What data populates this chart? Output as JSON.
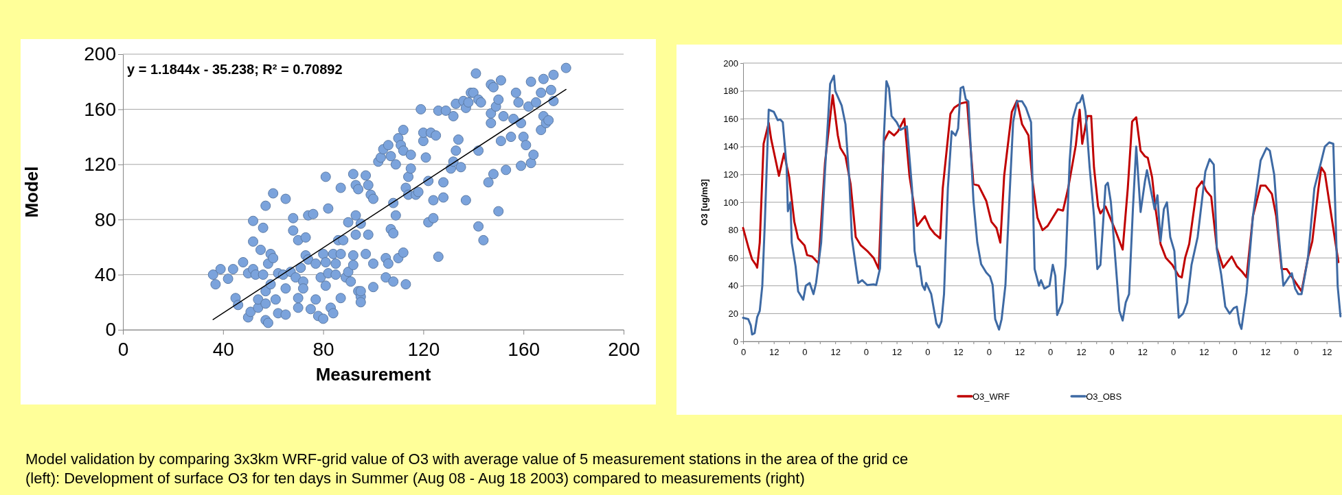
{
  "chart_data": [
    {
      "type": "scatter",
      "xlabel": "Measurement",
      "ylabel": "Model",
      "xlim": [
        0,
        200
      ],
      "xticks": [
        0,
        40,
        80,
        120,
        160,
        200
      ],
      "ylim": [
        0,
        200
      ],
      "yticks": [
        0,
        40,
        80,
        120,
        160,
        200
      ],
      "grid": "y",
      "annotations": [
        "y = 1.1844x - 35.238; R² = 0.70892"
      ],
      "series": [
        {
          "type": "scatter",
          "marker": "circle",
          "color": "#7ba3dc",
          "x": [
            36,
            37,
            39,
            42,
            44,
            45,
            46,
            48,
            50,
            50,
            51,
            52,
            52,
            52,
            53,
            54,
            54,
            55,
            56,
            56,
            57,
            57,
            57,
            57,
            58,
            58,
            59,
            59,
            60,
            60,
            61,
            62,
            62,
            64,
            65,
            65,
            65,
            67,
            68,
            68,
            69,
            70,
            70,
            70,
            71,
            72,
            72,
            73,
            73,
            74,
            74,
            75,
            76,
            77,
            77,
            78,
            79,
            80,
            80,
            81,
            81,
            81,
            82,
            82,
            83,
            84,
            84,
            85,
            85,
            86,
            87,
            87,
            87,
            88,
            89,
            90,
            90,
            91,
            92,
            92,
            92,
            93,
            93,
            93,
            94,
            94,
            95,
            95,
            95,
            95,
            97,
            97,
            98,
            98,
            99,
            100,
            100,
            100,
            102,
            103,
            104,
            105,
            105,
            106,
            106,
            107,
            107,
            108,
            108,
            108,
            109,
            109,
            110,
            110,
            111,
            112,
            112,
            112,
            113,
            113,
            114,
            114,
            115,
            115,
            117,
            118,
            119,
            120,
            120,
            121,
            122,
            122,
            123,
            124,
            124,
            125,
            126,
            126,
            128,
            128,
            129,
            131,
            132,
            132,
            133,
            133,
            134,
            135,
            136,
            137,
            137,
            138,
            139,
            140,
            141,
            142,
            142,
            142,
            143,
            144,
            146,
            147,
            147,
            147,
            148,
            148,
            149,
            150,
            150,
            151,
            151,
            152,
            153,
            155,
            156,
            157,
            158,
            159,
            159,
            160,
            161,
            162,
            163,
            163,
            164,
            165,
            167,
            167,
            168,
            168,
            169,
            170,
            171,
            172,
            172,
            177
          ],
          "values": [
            40,
            33,
            44,
            37,
            44,
            23,
            18,
            49,
            41,
            9,
            13,
            44,
            64,
            79,
            40,
            16,
            22,
            58,
            74,
            40,
            7,
            19,
            28,
            90,
            48,
            5,
            55,
            33,
            52,
            99,
            22,
            41,
            12,
            40,
            95,
            30,
            11,
            42,
            72,
            81,
            38,
            65,
            23,
            16,
            45,
            35,
            30,
            54,
            67,
            83,
            51,
            15,
            84,
            22,
            48,
            10,
            38,
            8,
            55,
            49,
            32,
            111,
            88,
            41,
            16,
            12,
            55,
            40,
            48,
            65,
            103,
            23,
            55,
            65,
            38,
            78,
            42,
            35,
            113,
            54,
            47,
            83,
            105,
            69,
            102,
            28,
            24,
            20,
            77,
            28,
            112,
            55,
            69,
            105,
            98,
            95,
            48,
            31,
            122,
            125,
            131,
            52,
            38,
            134,
            48,
            73,
            126,
            92,
            70,
            35,
            120,
            83,
            52,
            139,
            134,
            145,
            130,
            56,
            33,
            103,
            98,
            111,
            117,
            127,
            98,
            100,
            160,
            137,
            143,
            125,
            78,
            108,
            143,
            94,
            81,
            141,
            159,
            53,
            107,
            96,
            159,
            117,
            155,
            122,
            130,
            164,
            138,
            118,
            166,
            94,
            161,
            165,
            172,
            172,
            186,
            130,
            75,
            167,
            165,
            65,
            107,
            150,
            178,
            157,
            176,
            113,
            162,
            86,
            167,
            137,
            181,
            155,
            116,
            140,
            153,
            172,
            165,
            119,
            150,
            140,
            134,
            162,
            121,
            180,
            127,
            165,
            145,
            172,
            182,
            155,
            150,
            152,
            174,
            185,
            166,
            190
          ]
        },
        {
          "type": "line",
          "marker": "none",
          "color": "#000000",
          "x": [
            36,
            177
          ],
          "values": [
            7.4,
            174.4
          ]
        }
      ]
    },
    {
      "type": "line",
      "ylabel": "O3 [ug/m3]",
      "xlim": [
        "2003-08-08T00:00",
        "2003-08-17T18:00"
      ],
      "ylim": [
        0,
        200
      ],
      "yticks": [
        0,
        20,
        40,
        60,
        80,
        100,
        120,
        140,
        160,
        180,
        200
      ],
      "xticks": [
        {
          "value": "2003-08-08T00:00",
          "label": "0"
        },
        {
          "value": "2003-08-08T06:00",
          "label": null
        },
        {
          "value": "2003-08-08T12:00",
          "label": "12"
        },
        {
          "value": "2003-08-08T18:00",
          "label": null
        },
        {
          "value": "2003-08-09T00:00",
          "label": "0"
        },
        {
          "value": "2003-08-09T06:00",
          "label": null
        },
        {
          "value": "2003-08-09T12:00",
          "label": "12"
        },
        {
          "value": "2003-08-09T18:00",
          "label": null
        },
        {
          "value": "2003-08-10T00:00",
          "label": "0"
        },
        {
          "value": "2003-08-10T06:00",
          "label": null
        },
        {
          "value": "2003-08-10T12:00",
          "label": "12"
        },
        {
          "value": "2003-08-10T18:00",
          "label": null
        },
        {
          "value": "2003-08-11T00:00",
          "label": "0"
        },
        {
          "value": "2003-08-11T06:00",
          "label": null
        },
        {
          "value": "2003-08-11T12:00",
          "label": "12"
        },
        {
          "value": "2003-08-11T18:00",
          "label": null
        },
        {
          "value": "2003-08-12T00:00",
          "label": "0"
        },
        {
          "value": "2003-08-12T06:00",
          "label": null
        },
        {
          "value": "2003-08-12T12:00",
          "label": "12"
        },
        {
          "value": "2003-08-12T18:00",
          "label": null
        },
        {
          "value": "2003-08-13T00:00",
          "label": "0"
        },
        {
          "value": "2003-08-13T06:00",
          "label": null
        },
        {
          "value": "2003-08-13T12:00",
          "label": "12"
        },
        {
          "value": "2003-08-13T18:00",
          "label": null
        },
        {
          "value": "2003-08-14T00:00",
          "label": "0"
        },
        {
          "value": "2003-08-14T06:00",
          "label": null
        },
        {
          "value": "2003-08-14T12:00",
          "label": "12"
        },
        {
          "value": "2003-08-14T18:00",
          "label": null
        },
        {
          "value": "2003-08-15T00:00",
          "label": "0"
        },
        {
          "value": "2003-08-15T06:00",
          "label": null
        },
        {
          "value": "2003-08-15T12:00",
          "label": "12"
        },
        {
          "value": "2003-08-15T18:00",
          "label": null
        },
        {
          "value": "2003-08-16T00:00",
          "label": "0"
        },
        {
          "value": "2003-08-16T06:00",
          "label": null
        },
        {
          "value": "2003-08-16T12:00",
          "label": "12"
        },
        {
          "value": "2003-08-16T18:00",
          "label": null
        },
        {
          "value": "2003-08-17T00:00",
          "label": "0"
        },
        {
          "value": "2003-08-17T06:00",
          "label": null
        },
        {
          "value": "2003-08-17T12:00",
          "label": "12"
        },
        {
          "value": "2003-08-17T18:00",
          "label": null
        }
      ],
      "grid": "y",
      "legend": "bottom",
      "annotations": [
        "Model validation by comparing 3x3km WRF-grid value of O3 with average value of 5 measurement stations in the area of the grid ce",
        "(left): Development of surface O3 for ten days in Summer (Aug 08 - Aug 18 2003) compared to measurements (right)"
      ],
      "series": [
        {
          "name": "O3_WRF",
          "color": "#c00000",
          "x": [
            "2003-08-08T00:00",
            "2003-08-08T02:00",
            "2003-08-08T03:30",
            "2003-08-08T05:00",
            "2003-08-08T05:30",
            "2003-08-08T06:30",
            "2003-08-08T08:00",
            "2003-08-08T10:00",
            "2003-08-08T11:00",
            "2003-08-08T12:30",
            "2003-08-08T14:00",
            "2003-08-08T16:00",
            "2003-08-08T18:00",
            "2003-08-08T20:00",
            "2003-08-08T21:30",
            "2003-08-09T00:00",
            "2003-08-09T01:00",
            "2003-08-09T03:00",
            "2003-08-09T05:30",
            "2003-08-09T08:00",
            "2003-08-09T11:00",
            "2003-08-09T13:00",
            "2003-08-09T14:00",
            "2003-08-09T16:00",
            "2003-08-09T17:30",
            "2003-08-09T18:00",
            "2003-08-09T20:00",
            "2003-08-09T22:00",
            "2003-08-10T00:30",
            "2003-08-10T03:00",
            "2003-08-10T05:00",
            "2003-08-10T07:00",
            "2003-08-10T09:00",
            "2003-08-10T11:00",
            "2003-08-10T12:30",
            "2003-08-10T15:00",
            "2003-08-10T17:00",
            "2003-08-10T19:00",
            "2003-08-10T20:00",
            "2003-08-10T23:00",
            "2003-08-11T01:00",
            "2003-08-11T03:00",
            "2003-08-11T05:00",
            "2003-08-11T06:00",
            "2003-08-11T09:00",
            "2003-08-11T10:30",
            "2003-08-11T13:00",
            "2003-08-11T15:30",
            "2003-08-11T18:00",
            "2003-08-11T20:00",
            "2003-08-11T23:00",
            "2003-08-12T01:00",
            "2003-08-12T03:00",
            "2003-08-12T04:30",
            "2003-08-12T06:00",
            "2003-08-12T09:00",
            "2003-08-12T11:00",
            "2003-08-12T13:00",
            "2003-08-12T15:30",
            "2003-08-12T17:00",
            "2003-08-12T19:00",
            "2003-08-12T21:00",
            "2003-08-12T23:00",
            "2003-08-13T01:00",
            "2003-08-13T03:00",
            "2003-08-13T05:00",
            "2003-08-13T07:00",
            "2003-08-13T10:00",
            "2003-08-13T11:30",
            "2003-08-13T12:30",
            "2003-08-13T14:30",
            "2003-08-13T16:00",
            "2003-08-13T17:06",
            "2003-08-13T18:42",
            "2003-08-13T19:36",
            "2003-08-13T21:36",
            "2003-08-14T01:24",
            "2003-08-14T04:18",
            "2003-08-14T06:18",
            "2003-08-14T08:00",
            "2003-08-14T09:36",
            "2003-08-14T11:18",
            "2003-08-14T13:00",
            "2003-08-14T14:06",
            "2003-08-14T15:48",
            "2003-08-14T17:06",
            "2003-08-14T19:06",
            "2003-08-14T21:12",
            "2003-08-14T23:42",
            "2003-08-15T02:12",
            "2003-08-15T03:24",
            "2003-08-15T04:42",
            "2003-08-15T06:18",
            "2003-08-15T09:18",
            "2003-08-15T11:18",
            "2003-08-15T13:00",
            "2003-08-15T14:54",
            "2003-08-15T17:06",
            "2003-08-15T19:36",
            "2003-08-15T22:54",
            "2003-08-16T00:54",
            "2003-08-16T03:00",
            "2003-08-16T04:42",
            "2003-08-16T07:12",
            "2003-08-16T10:12",
            "2003-08-16T12:06",
            "2003-08-16T14:36",
            "2003-08-16T16:18",
            "2003-08-16T18:24",
            "2003-08-16T20:24",
            "2003-08-16T22:54",
            "2003-08-17T02:12",
            "2003-08-17T04:42",
            "2003-08-17T06:24",
            "2003-08-17T08:48",
            "2003-08-17T09:54",
            "2003-08-17T11:18",
            "2003-08-17T16:36"
          ],
          "values": [
            81.5,
            68,
            59,
            55,
            53,
            71,
            142,
            157,
            145,
            132,
            119,
            135,
            118,
            86,
            74,
            69,
            62,
            61,
            56,
            128.5,
            177,
            148,
            139,
            133,
            118,
            113,
            75,
            69,
            65,
            60,
            52,
            144,
            151,
            148,
            151,
            160,
            119,
            95,
            83,
            90,
            81.5,
            77,
            74,
            110,
            163.5,
            168,
            171,
            172,
            113,
            112,
            101,
            86,
            81.5,
            71,
            119,
            165,
            173,
            156,
            148,
            116,
            89,
            80,
            83,
            89,
            95,
            94,
            110,
            141,
            166.5,
            142,
            162,
            162,
            125,
            97,
            92,
            97,
            80,
            66,
            110,
            158,
            161,
            137,
            133,
            132,
            118,
            96,
            70,
            60,
            55,
            47,
            46,
            60,
            70,
            110,
            115,
            108,
            104,
            67,
            53,
            61,
            54,
            50,
            46,
            90,
            112,
            112,
            106,
            90,
            52,
            52,
            45,
            36,
            60,
            72,
            110,
            125,
            121,
            57
          ]
        },
        {
          "name": "O3_OBS",
          "color": "#3e6aa4",
          "x": [
            "2003-08-08T00:00",
            "2003-08-08T02:00",
            "2003-08-08T03:00",
            "2003-08-08T03:30",
            "2003-08-08T04:30",
            "2003-08-08T05:30",
            "2003-08-08T06:30",
            "2003-08-08T07:30",
            "2003-08-08T08:30",
            "2003-08-08T10:00",
            "2003-08-08T12:00",
            "2003-08-08T13:30",
            "2003-08-08T14:30",
            "2003-08-08T15:30",
            "2003-08-08T17:00",
            "2003-08-08T17:30",
            "2003-08-08T18:30",
            "2003-08-08T19:00",
            "2003-08-08T20:30",
            "2003-08-08T21:30",
            "2003-08-08T23:30",
            "2003-08-09T00:30",
            "2003-08-09T02:00",
            "2003-08-09T03:30",
            "2003-08-09T04:30",
            "2003-08-09T06:30",
            "2003-08-09T08:00",
            "2003-08-09T10:00",
            "2003-08-09T11:30",
            "2003-08-09T12:00",
            "2003-08-09T14:30",
            "2003-08-09T16:00",
            "2003-08-09T17:30",
            "2003-08-09T18:30",
            "2003-08-09T20:30",
            "2003-08-09T21:00",
            "2003-08-09T22:30",
            "2003-08-10T00:30",
            "2003-08-10T03:00",
            "2003-08-10T04:00",
            "2003-08-10T05:30",
            "2003-08-10T07:00",
            "2003-08-10T08:00",
            "2003-08-10T09:00",
            "2003-08-10T10:00",
            "2003-08-10T12:00",
            "2003-08-10T13:30",
            "2003-08-10T15:30",
            "2003-08-10T16:00",
            "2003-08-10T18:00",
            "2003-08-10T19:00",
            "2003-08-10T20:00",
            "2003-08-10T21:00",
            "2003-08-10T22:00",
            "2003-08-10T23:00",
            "2003-08-10T23:30",
            "2003-08-11T01:30",
            "2003-08-11T03:30",
            "2003-08-11T04:30",
            "2003-08-11T05:30",
            "2003-08-11T06:30",
            "2003-08-11T08:00",
            "2003-08-11T09:30",
            "2003-08-11T11:00",
            "2003-08-11T12:00",
            "2003-08-11T13:00",
            "2003-08-11T14:00",
            "2003-08-11T15:00",
            "2003-08-11T16:00",
            "2003-08-11T18:00",
            "2003-08-11T19:30",
            "2003-08-11T21:00",
            "2003-08-11T23:00",
            "2003-08-12T00:30",
            "2003-08-12T01:30",
            "2003-08-12T02:30",
            "2003-08-12T04:00",
            "2003-08-12T05:00",
            "2003-08-12T06:30",
            "2003-08-12T08:00",
            "2003-08-12T09:30",
            "2003-08-12T11:00",
            "2003-08-12T13:00",
            "2003-08-12T14:30",
            "2003-08-12T16:30",
            "2003-08-12T17:54",
            "2003-08-12T19:36",
            "2003-08-12T20:24",
            "2003-08-12T21:42",
            "2003-08-12T23:42",
            "2003-08-13T01:00",
            "2003-08-13T02:00",
            "2003-08-13T02:42",
            "2003-08-13T04:42",
            "2003-08-13T06:00",
            "2003-08-13T07:36",
            "2003-08-13T08:48",
            "2003-08-13T10:30",
            "2003-08-13T11:36",
            "2003-08-13T12:36",
            "2003-08-13T13:48",
            "2003-08-13T15:24",
            "2003-08-13T17:06",
            "2003-08-13T18:24",
            "2003-08-13T19:36",
            "2003-08-13T21:36",
            "2003-08-13T22:30",
            "2003-08-13T23:42",
            "2003-08-14T01:24",
            "2003-08-14T03:00",
            "2003-08-14T04:18",
            "2003-08-14T05:30",
            "2003-08-14T06:48",
            "2003-08-14T08:18",
            "2003-08-14T09:36",
            "2003-08-14T11:18",
            "2003-08-14T13:00",
            "2003-08-14T13:48",
            "2003-08-14T15:24",
            "2003-08-14T16:48",
            "2003-08-14T17:54",
            "2003-08-14T19:06",
            "2003-08-14T20:24",
            "2003-08-14T21:36",
            "2003-08-14T22:54",
            "2003-08-15T00:30",
            "2003-08-15T02:12",
            "2003-08-15T03:54",
            "2003-08-15T05:30",
            "2003-08-15T07:12",
            "2003-08-15T09:36",
            "2003-08-15T12:36",
            "2003-08-15T14:18",
            "2003-08-15T15:54",
            "2003-08-15T17:06",
            "2003-08-15T18:48",
            "2003-08-15T20:24",
            "2003-08-15T22:06",
            "2003-08-15T23:42",
            "2003-08-16T00:54",
            "2003-08-16T01:54",
            "2003-08-16T02:42",
            "2003-08-16T04:42",
            "2003-08-16T07:12",
            "2003-08-16T10:12",
            "2003-08-16T12:30",
            "2003-08-16T13:48",
            "2003-08-16T15:30",
            "2003-08-16T17:06",
            "2003-08-16T19:06",
            "2003-08-16T21:12",
            "2003-08-16T22:24",
            "2003-08-16T23:42",
            "2003-08-17T00:54",
            "2003-08-17T02:12",
            "2003-08-17T04:42",
            "2003-08-17T07:12",
            "2003-08-17T09:42",
            "2003-08-17T11:18",
            "2003-08-17T13:00",
            "2003-08-17T14:36",
            "2003-08-17T16:18",
            "2003-08-17T17:24"
          ],
          "values": [
            17,
            16,
            11.5,
            5,
            6,
            17.5,
            22,
            40,
            86,
            166.5,
            165,
            159,
            159.5,
            157.5,
            125.5,
            93.5,
            100,
            71,
            54,
            36,
            30,
            40,
            42,
            34,
            42,
            71,
            122.5,
            185,
            191,
            180,
            169.5,
            156,
            116,
            74,
            48,
            42,
            44,
            40.5,
            41,
            40.5,
            52.5,
            147,
            187,
            182,
            162,
            157.5,
            152,
            154,
            154.5,
            110,
            65,
            54,
            54,
            40.5,
            37,
            42,
            34,
            13,
            10,
            14.5,
            34,
            110,
            151,
            148,
            153,
            182,
            183,
            174,
            172.5,
            101,
            71,
            55.5,
            49.5,
            46.5,
            40.5,
            16,
            8.5,
            16,
            40.5,
            101,
            157.5,
            172.5,
            172.5,
            168,
            157.5,
            52,
            40,
            44,
            38,
            40,
            55,
            47,
            19,
            28,
            55,
            130,
            160,
            171,
            172,
            177,
            165,
            125,
            90,
            52,
            55,
            112,
            114,
            100,
            60,
            22,
            15,
            28,
            34,
            95,
            140,
            93,
            115,
            123,
            108,
            95,
            105,
            72,
            95,
            100,
            75,
            65,
            17,
            20,
            28,
            55,
            75,
            122,
            131,
            127,
            66,
            48,
            25,
            20,
            24,
            25,
            13,
            9,
            35,
            90,
            130,
            139,
            137,
            120,
            80,
            40,
            46,
            49,
            38,
            34,
            34,
            60,
            110,
            128,
            140,
            143,
            142,
            40,
            18
          ]
        }
      ]
    }
  ]
}
